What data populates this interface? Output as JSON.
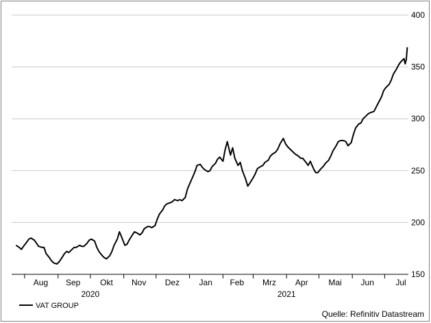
{
  "chart_data": {
    "type": "line",
    "series": [
      {
        "name": "VAT GROUP",
        "color": "#000000",
        "points": [
          [
            "2020-07-24",
            178
          ],
          [
            "2020-07-27",
            176
          ],
          [
            "2020-07-29",
            174
          ],
          [
            "2020-07-31",
            177
          ],
          [
            "2020-08-03",
            181
          ],
          [
            "2020-08-05",
            184
          ],
          [
            "2020-08-07",
            185
          ],
          [
            "2020-08-10",
            183
          ],
          [
            "2020-08-12",
            180
          ],
          [
            "2020-08-14",
            177
          ],
          [
            "2020-08-17",
            176
          ],
          [
            "2020-08-19",
            176
          ],
          [
            "2020-08-21",
            170
          ],
          [
            "2020-08-24",
            166
          ],
          [
            "2020-08-26",
            163
          ],
          [
            "2020-08-28",
            161
          ],
          [
            "2020-08-31",
            160
          ],
          [
            "2020-09-02",
            162
          ],
          [
            "2020-09-04",
            165
          ],
          [
            "2020-09-07",
            170
          ],
          [
            "2020-09-09",
            172
          ],
          [
            "2020-09-11",
            171
          ],
          [
            "2020-09-14",
            174
          ],
          [
            "2020-09-16",
            176
          ],
          [
            "2020-09-18",
            176
          ],
          [
            "2020-09-21",
            178
          ],
          [
            "2020-09-23",
            177
          ],
          [
            "2020-09-25",
            177
          ],
          [
            "2020-09-28",
            180
          ],
          [
            "2020-09-30",
            183
          ],
          [
            "2020-10-02",
            184
          ],
          [
            "2020-10-05",
            182
          ],
          [
            "2020-10-07",
            176
          ],
          [
            "2020-10-09",
            172
          ],
          [
            "2020-10-12",
            168
          ],
          [
            "2020-10-14",
            166
          ],
          [
            "2020-10-16",
            165
          ],
          [
            "2020-10-19",
            168
          ],
          [
            "2020-10-21",
            172
          ],
          [
            "2020-10-23",
            178
          ],
          [
            "2020-10-26",
            184
          ],
          [
            "2020-10-28",
            191
          ],
          [
            "2020-10-30",
            186
          ],
          [
            "2020-11-02",
            178
          ],
          [
            "2020-11-04",
            179
          ],
          [
            "2020-11-06",
            183
          ],
          [
            "2020-11-09",
            188
          ],
          [
            "2020-11-11",
            191
          ],
          [
            "2020-11-13",
            190
          ],
          [
            "2020-11-16",
            188
          ],
          [
            "2020-11-18",
            190
          ],
          [
            "2020-11-20",
            194
          ],
          [
            "2020-11-23",
            196
          ],
          [
            "2020-11-25",
            196
          ],
          [
            "2020-11-27",
            195
          ],
          [
            "2020-11-30",
            197
          ],
          [
            "2020-12-02",
            203
          ],
          [
            "2020-12-04",
            208
          ],
          [
            "2020-12-07",
            212
          ],
          [
            "2020-12-09",
            216
          ],
          [
            "2020-12-11",
            218
          ],
          [
            "2020-12-14",
            219
          ],
          [
            "2020-12-16",
            220
          ],
          [
            "2020-12-18",
            222
          ],
          [
            "2020-12-21",
            221
          ],
          [
            "2020-12-23",
            222
          ],
          [
            "2020-12-25",
            221
          ],
          [
            "2020-12-28",
            224
          ],
          [
            "2020-12-30",
            232
          ],
          [
            "2021-01-01",
            237
          ],
          [
            "2021-01-04",
            244
          ],
          [
            "2021-01-06",
            249
          ],
          [
            "2021-01-08",
            255
          ],
          [
            "2021-01-11",
            256
          ],
          [
            "2021-01-13",
            253
          ],
          [
            "2021-01-15",
            251
          ],
          [
            "2021-01-18",
            249
          ],
          [
            "2021-01-20",
            250
          ],
          [
            "2021-01-22",
            254
          ],
          [
            "2021-01-25",
            257
          ],
          [
            "2021-01-27",
            261
          ],
          [
            "2021-01-29",
            263
          ],
          [
            "2021-02-01",
            259
          ],
          [
            "2021-02-03",
            270
          ],
          [
            "2021-02-05",
            278
          ],
          [
            "2021-02-08",
            265
          ],
          [
            "2021-02-10",
            272
          ],
          [
            "2021-02-12",
            262
          ],
          [
            "2021-02-15",
            255
          ],
          [
            "2021-02-17",
            258
          ],
          [
            "2021-02-19",
            250
          ],
          [
            "2021-02-22",
            242
          ],
          [
            "2021-02-24",
            235
          ],
          [
            "2021-02-26",
            238
          ],
          [
            "2021-03-01",
            243
          ],
          [
            "2021-03-03",
            247
          ],
          [
            "2021-03-05",
            252
          ],
          [
            "2021-03-08",
            254
          ],
          [
            "2021-03-10",
            255
          ],
          [
            "2021-03-12",
            258
          ],
          [
            "2021-03-15",
            260
          ],
          [
            "2021-03-17",
            264
          ],
          [
            "2021-03-19",
            266
          ],
          [
            "2021-03-22",
            268
          ],
          [
            "2021-03-24",
            271
          ],
          [
            "2021-03-26",
            276
          ],
          [
            "2021-03-29",
            281
          ],
          [
            "2021-03-31",
            276
          ],
          [
            "2021-04-02",
            273
          ],
          [
            "2021-04-05",
            270
          ],
          [
            "2021-04-07",
            268
          ],
          [
            "2021-04-09",
            266
          ],
          [
            "2021-04-12",
            264
          ],
          [
            "2021-04-14",
            262
          ],
          [
            "2021-04-16",
            262
          ],
          [
            "2021-04-19",
            258
          ],
          [
            "2021-04-21",
            255
          ],
          [
            "2021-04-23",
            259
          ],
          [
            "2021-04-26",
            252
          ],
          [
            "2021-04-28",
            248
          ],
          [
            "2021-04-30",
            248
          ],
          [
            "2021-05-03",
            252
          ],
          [
            "2021-05-05",
            254
          ],
          [
            "2021-05-07",
            257
          ],
          [
            "2021-05-10",
            260
          ],
          [
            "2021-05-12",
            264
          ],
          [
            "2021-05-14",
            269
          ],
          [
            "2021-05-17",
            274
          ],
          [
            "2021-05-19",
            278
          ],
          [
            "2021-05-21",
            279
          ],
          [
            "2021-05-24",
            279
          ],
          [
            "2021-05-26",
            278
          ],
          [
            "2021-05-28",
            274
          ],
          [
            "2021-05-31",
            277
          ],
          [
            "2021-06-02",
            285
          ],
          [
            "2021-06-04",
            291
          ],
          [
            "2021-06-07",
            295
          ],
          [
            "2021-06-09",
            296
          ],
          [
            "2021-06-11",
            300
          ],
          [
            "2021-06-14",
            303
          ],
          [
            "2021-06-16",
            305
          ],
          [
            "2021-06-18",
            306
          ],
          [
            "2021-06-21",
            307
          ],
          [
            "2021-06-23",
            311
          ],
          [
            "2021-06-25",
            315
          ],
          [
            "2021-06-28",
            321
          ],
          [
            "2021-06-30",
            327
          ],
          [
            "2021-07-02",
            330
          ],
          [
            "2021-07-05",
            333
          ],
          [
            "2021-07-07",
            337
          ],
          [
            "2021-07-09",
            343
          ],
          [
            "2021-07-12",
            348
          ],
          [
            "2021-07-14",
            352
          ],
          [
            "2021-07-16",
            355
          ],
          [
            "2021-07-19",
            358
          ],
          [
            "2021-07-20",
            353
          ],
          [
            "2021-07-21",
            357
          ],
          [
            "2021-07-22",
            369
          ]
        ]
      }
    ],
    "x_axis": {
      "type": "date",
      "range": [
        "2020-07-20",
        "2021-07-23"
      ],
      "tick_labels": [
        "Aug",
        "Sep",
        "Okt",
        "Nov",
        "Dez",
        "Jan",
        "Feb",
        "Mrz",
        "Apr",
        "Mai",
        "Jun",
        "Jul"
      ],
      "tick_dates": [
        "2020-08-16",
        "2020-09-15",
        "2020-10-16",
        "2020-11-15",
        "2020-12-16",
        "2021-01-16",
        "2021-02-14",
        "2021-03-16",
        "2021-04-15",
        "2021-05-16",
        "2021-06-15",
        "2021-07-16"
      ],
      "boundary_dates": [
        "2020-08-01",
        "2020-09-01",
        "2020-10-01",
        "2020-11-01",
        "2020-12-01",
        "2021-01-01",
        "2021-02-01",
        "2021-03-01",
        "2021-04-01",
        "2021-05-01",
        "2021-06-01",
        "2021-07-01"
      ],
      "year_labels": [
        {
          "label": "2020",
          "date": "2020-10-01"
        },
        {
          "label": "2021",
          "date": "2021-04-01"
        }
      ]
    },
    "y_axis": {
      "position": "right",
      "range": [
        150,
        400
      ],
      "ticks": [
        150,
        200,
        250,
        300,
        350,
        400
      ]
    },
    "grid": "horizontal",
    "legend": "bottom-left"
  },
  "source_text": "Quelle: Refinitiv Datastream"
}
